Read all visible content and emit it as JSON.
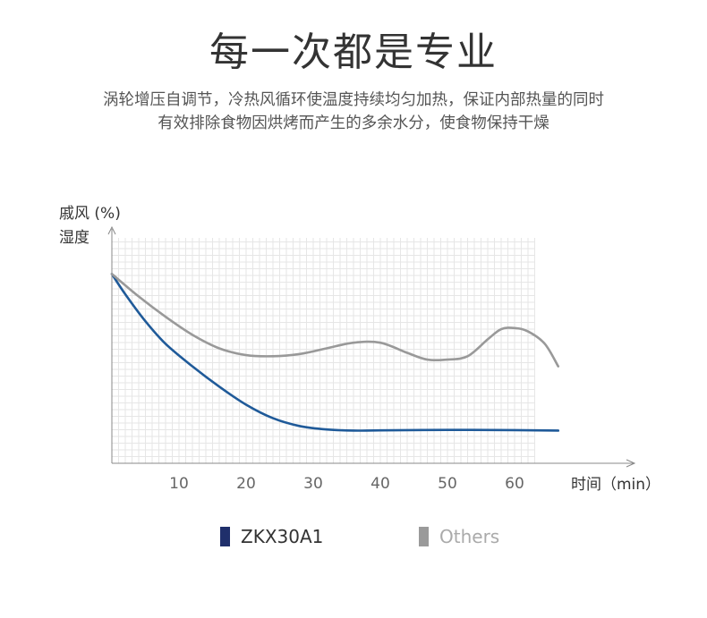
{
  "header": {
    "title": "每一次都是专业",
    "subtitle_line1": "涡轮增压自调节，冷热风循环使温度持续均匀加热，保证内部热量的同时",
    "subtitle_line2": "有效排除食物因烘烤而产生的多余水分，使食物保持干燥"
  },
  "chart_data": {
    "type": "line",
    "ylabel_line1": "戚风 (%)",
    "ylabel_line2": "湿度",
    "xlabel": "时间（min）",
    "x_ticks": [
      10,
      20,
      30,
      40,
      50,
      60
    ],
    "xlim": [
      0,
      67
    ],
    "ylim": [
      0,
      100
    ],
    "grid": true,
    "legend_position": "bottom",
    "series": [
      {
        "name": "ZKX30A1",
        "color": "#1f5a99",
        "points": [
          [
            0,
            84
          ],
          [
            2,
            75
          ],
          [
            5,
            63
          ],
          [
            8,
            53
          ],
          [
            12,
            43
          ],
          [
            16,
            34
          ],
          [
            20,
            26
          ],
          [
            24,
            20
          ],
          [
            28,
            16.5
          ],
          [
            32,
            15
          ],
          [
            36,
            14.5
          ],
          [
            40,
            14.6
          ],
          [
            50,
            14.8
          ],
          [
            60,
            14.7
          ],
          [
            66.5,
            14.5
          ]
        ]
      },
      {
        "name": "Others",
        "color": "#999999",
        "points": [
          [
            0,
            84
          ],
          [
            4,
            74
          ],
          [
            8,
            65
          ],
          [
            12,
            57
          ],
          [
            16,
            51
          ],
          [
            20,
            48
          ],
          [
            24,
            47.5
          ],
          [
            28,
            48.5
          ],
          [
            32,
            51
          ],
          [
            36,
            53.5
          ],
          [
            40,
            53.5
          ],
          [
            44,
            49
          ],
          [
            47,
            46
          ],
          [
            50,
            46
          ],
          [
            53,
            47.5
          ],
          [
            56,
            55
          ],
          [
            58,
            59.5
          ],
          [
            60,
            60
          ],
          [
            62,
            58.5
          ],
          [
            64.5,
            53
          ],
          [
            66.5,
            43
          ]
        ]
      }
    ]
  },
  "legend": {
    "primary_label": "ZKX30A1",
    "primary_color": "#1f2f6b",
    "secondary_label": "Others",
    "secondary_color": "#9a9a9a"
  }
}
